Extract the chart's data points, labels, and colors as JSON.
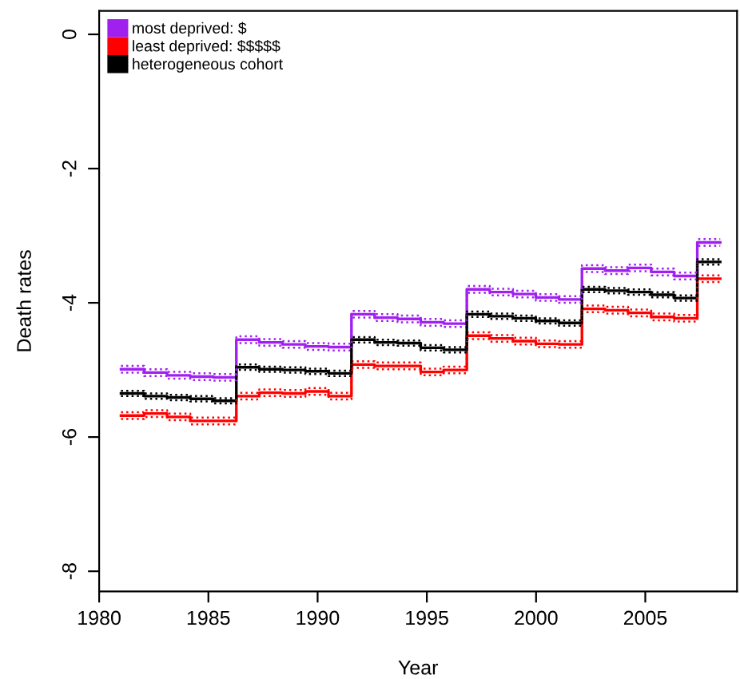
{
  "chart_data": {
    "type": "step",
    "xlabel": "Year",
    "ylabel": "Death rates",
    "x": [
      1981,
      1982.06,
      1983.11,
      1984.17,
      1985.22,
      1986.28,
      1987.33,
      1988.39,
      1989.44,
      1990.5,
      1991.55,
      1992.61,
      1993.66,
      1994.72,
      1995.77,
      1996.83,
      1997.88,
      1998.94,
      1999.99,
      2001.05,
      2002.1,
      2003.16,
      2004.21,
      2005.27,
      2006.32,
      2007.38,
      2008.43
    ],
    "xlim": [
      1980,
      2009.2
    ],
    "xticks": [
      1980,
      1985,
      1990,
      1995,
      2000,
      2005
    ],
    "ylim": [
      -8.3,
      0.35
    ],
    "yticks": [
      -8,
      -6,
      -4,
      -2,
      0
    ],
    "grid": false,
    "legend": "top left",
    "line_style": "solid",
    "series": [
      {
        "name": "most deprived: $",
        "color": "#a020f0",
        "values": [
          -4.99,
          -5.04,
          -5.08,
          -5.1,
          -5.11,
          -4.55,
          -4.59,
          -4.62,
          -4.65,
          -4.66,
          -4.17,
          -4.22,
          -4.24,
          -4.29,
          -4.31,
          -3.8,
          -3.84,
          -3.87,
          -3.92,
          -3.95,
          -3.49,
          -3.52,
          -3.48,
          -3.54,
          -3.6,
          -3.1,
          -3.1
        ]
      },
      {
        "name": "least deprived: $$$$$",
        "color": "#ff0000",
        "values": [
          -5.68,
          -5.65,
          -5.7,
          -5.76,
          -5.76,
          -5.39,
          -5.34,
          -5.35,
          -5.32,
          -5.39,
          -4.92,
          -4.94,
          -4.94,
          -5.03,
          -5.0,
          -4.49,
          -4.53,
          -4.57,
          -4.61,
          -4.62,
          -4.09,
          -4.11,
          -4.15,
          -4.21,
          -4.23,
          -3.64,
          -3.64
        ]
      },
      {
        "name": "heterogeneous cohort",
        "color": "#000000",
        "values": [
          -5.35,
          -5.39,
          -5.41,
          -5.43,
          -5.46,
          -4.96,
          -4.99,
          -5.0,
          -5.02,
          -5.05,
          -4.55,
          -4.59,
          -4.6,
          -4.67,
          -4.7,
          -4.17,
          -4.2,
          -4.23,
          -4.27,
          -4.3,
          -3.8,
          -3.82,
          -3.84,
          -3.88,
          -3.93,
          -3.39,
          -3.39
        ]
      },
      {
        "color": "#a020f0",
        "line_style": "dotted",
        "values": [
          -4.94,
          -4.99,
          -5.03,
          -5.05,
          -5.06,
          -4.5,
          -4.54,
          -4.57,
          -4.6,
          -4.61,
          -4.12,
          -4.17,
          -4.19,
          -4.24,
          -4.26,
          -3.75,
          -3.79,
          -3.82,
          -3.87,
          -3.9,
          -3.44,
          -3.47,
          -3.43,
          -3.49,
          -3.55,
          -3.05,
          -3.05
        ]
      },
      {
        "color": "#a020f0",
        "line_style": "dotted",
        "values": [
          -5.04,
          -5.09,
          -5.13,
          -5.15,
          -5.16,
          -4.6,
          -4.64,
          -4.67,
          -4.7,
          -4.71,
          -4.22,
          -4.27,
          -4.29,
          -4.34,
          -4.36,
          -3.85,
          -3.89,
          -3.92,
          -3.97,
          -4.0,
          -3.54,
          -3.57,
          -3.53,
          -3.59,
          -3.65,
          -3.15,
          -3.15
        ]
      },
      {
        "color": "#ff0000",
        "line_style": "dotted",
        "values": [
          -5.63,
          -5.6,
          -5.65,
          -5.71,
          -5.71,
          -5.34,
          -5.29,
          -5.3,
          -5.27,
          -5.34,
          -4.87,
          -4.89,
          -4.89,
          -4.98,
          -4.95,
          -4.44,
          -4.48,
          -4.52,
          -4.56,
          -4.57,
          -4.04,
          -4.06,
          -4.1,
          -4.16,
          -4.18,
          -3.59,
          -3.59
        ]
      },
      {
        "color": "#ff0000",
        "line_style": "dotted",
        "values": [
          -5.73,
          -5.7,
          -5.75,
          -5.81,
          -5.81,
          -5.44,
          -5.39,
          -5.4,
          -5.37,
          -5.44,
          -4.97,
          -4.99,
          -4.99,
          -5.08,
          -5.05,
          -4.54,
          -4.58,
          -4.62,
          -4.66,
          -4.67,
          -4.14,
          -4.16,
          -4.2,
          -4.26,
          -4.28,
          -3.69,
          -3.69
        ]
      },
      {
        "color": "#000000",
        "line_style": "dotted",
        "values": [
          -5.31,
          -5.35,
          -5.37,
          -5.39,
          -5.42,
          -4.92,
          -4.95,
          -4.96,
          -4.98,
          -5.01,
          -4.51,
          -4.55,
          -4.56,
          -4.63,
          -4.66,
          -4.13,
          -4.16,
          -4.19,
          -4.23,
          -4.26,
          -3.76,
          -3.78,
          -3.8,
          -3.84,
          -3.89,
          -3.35,
          -3.35
        ]
      },
      {
        "color": "#000000",
        "line_style": "dotted",
        "values": [
          -5.39,
          -5.43,
          -5.45,
          -5.47,
          -5.5,
          -5.0,
          -5.03,
          -5.04,
          -5.06,
          -5.09,
          -4.59,
          -4.63,
          -4.64,
          -4.71,
          -4.74,
          -4.21,
          -4.24,
          -4.27,
          -4.31,
          -4.34,
          -3.84,
          -3.86,
          -3.88,
          -3.92,
          -3.97,
          -3.43,
          -3.43
        ]
      }
    ]
  }
}
